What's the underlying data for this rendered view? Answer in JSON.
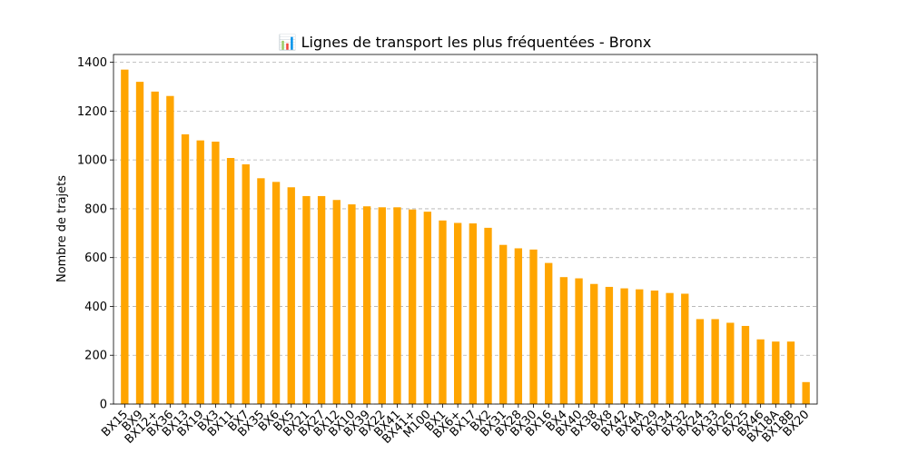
{
  "chart_data": {
    "type": "bar",
    "title": "📊 Lignes de transport les plus fréquentées - Bronx",
    "xlabel": "",
    "ylabel": "Nombre de trajets",
    "categories": [
      "BX15",
      "BX9",
      "BX12+",
      "BX36",
      "BX13",
      "BX19",
      "BX3",
      "BX11",
      "BX7",
      "BX35",
      "BX6",
      "BX5",
      "BX21",
      "BX27",
      "BX12",
      "BX10",
      "BX39",
      "BX22",
      "BX41",
      "BX41+",
      "M100",
      "BX1",
      "BX6+",
      "BX17",
      "BX2",
      "BX31",
      "BX28",
      "BX30",
      "BX16",
      "BX4",
      "BX40",
      "BX38",
      "BX8",
      "BX42",
      "BX4A",
      "BX29",
      "BX34",
      "BX32",
      "BX24",
      "BX33",
      "BX26",
      "BX25",
      "BX46",
      "BX18A",
      "BX18B",
      "BX20"
    ],
    "values": [
      1370,
      1320,
      1280,
      1262,
      1105,
      1080,
      1075,
      1008,
      982,
      925,
      910,
      888,
      852,
      852,
      836,
      818,
      810,
      806,
      806,
      797,
      788,
      752,
      742,
      740,
      722,
      652,
      638,
      633,
      578,
      520,
      515,
      492,
      480,
      474,
      470,
      465,
      455,
      452,
      348,
      348,
      333,
      320,
      265,
      256,
      256,
      90
    ],
    "ylim": [
      0,
      1432
    ],
    "yticks": [
      0,
      200,
      400,
      600,
      800,
      1000,
      1200,
      1400
    ],
    "bar_color": "#ffa500",
    "grid": "y-dashed",
    "legend": "none"
  }
}
